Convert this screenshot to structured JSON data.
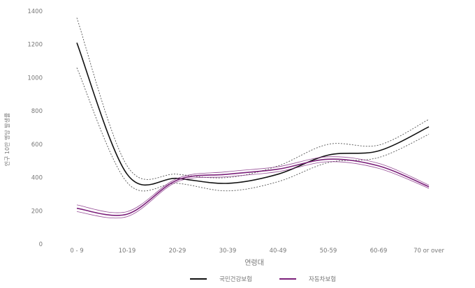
{
  "chart_data": {
    "type": "line",
    "xlabel": "연령대",
    "ylabel": "인구 10만 명당 발생률",
    "categories": [
      "0 - 9",
      "10-19",
      "20-29",
      "30-39",
      "40-49",
      "50-59",
      "60-69",
      "70 or over"
    ],
    "ylim": [
      0,
      1400
    ],
    "yticks": [
      0,
      200,
      400,
      600,
      800,
      1000,
      1200,
      1400
    ],
    "grid": false,
    "legend_position": "bottom",
    "series": [
      {
        "name": "국민건강보험",
        "color": "#111111",
        "values": [
          1210,
          420,
          395,
          365,
          420,
          535,
          560,
          705
        ],
        "upper": [
          1360,
          470,
          420,
          400,
          470,
          600,
          595,
          750
        ],
        "lower": [
          1060,
          370,
          365,
          320,
          375,
          490,
          520,
          660
        ]
      },
      {
        "name": "자동차보험",
        "color": "#7b1f7a",
        "values": [
          215,
          180,
          385,
          420,
          450,
          510,
          470,
          345
        ],
        "upper": [
          235,
          195,
          395,
          435,
          465,
          525,
          485,
          355
        ],
        "lower": [
          195,
          165,
          375,
          405,
          435,
          495,
          455,
          335
        ]
      }
    ]
  }
}
